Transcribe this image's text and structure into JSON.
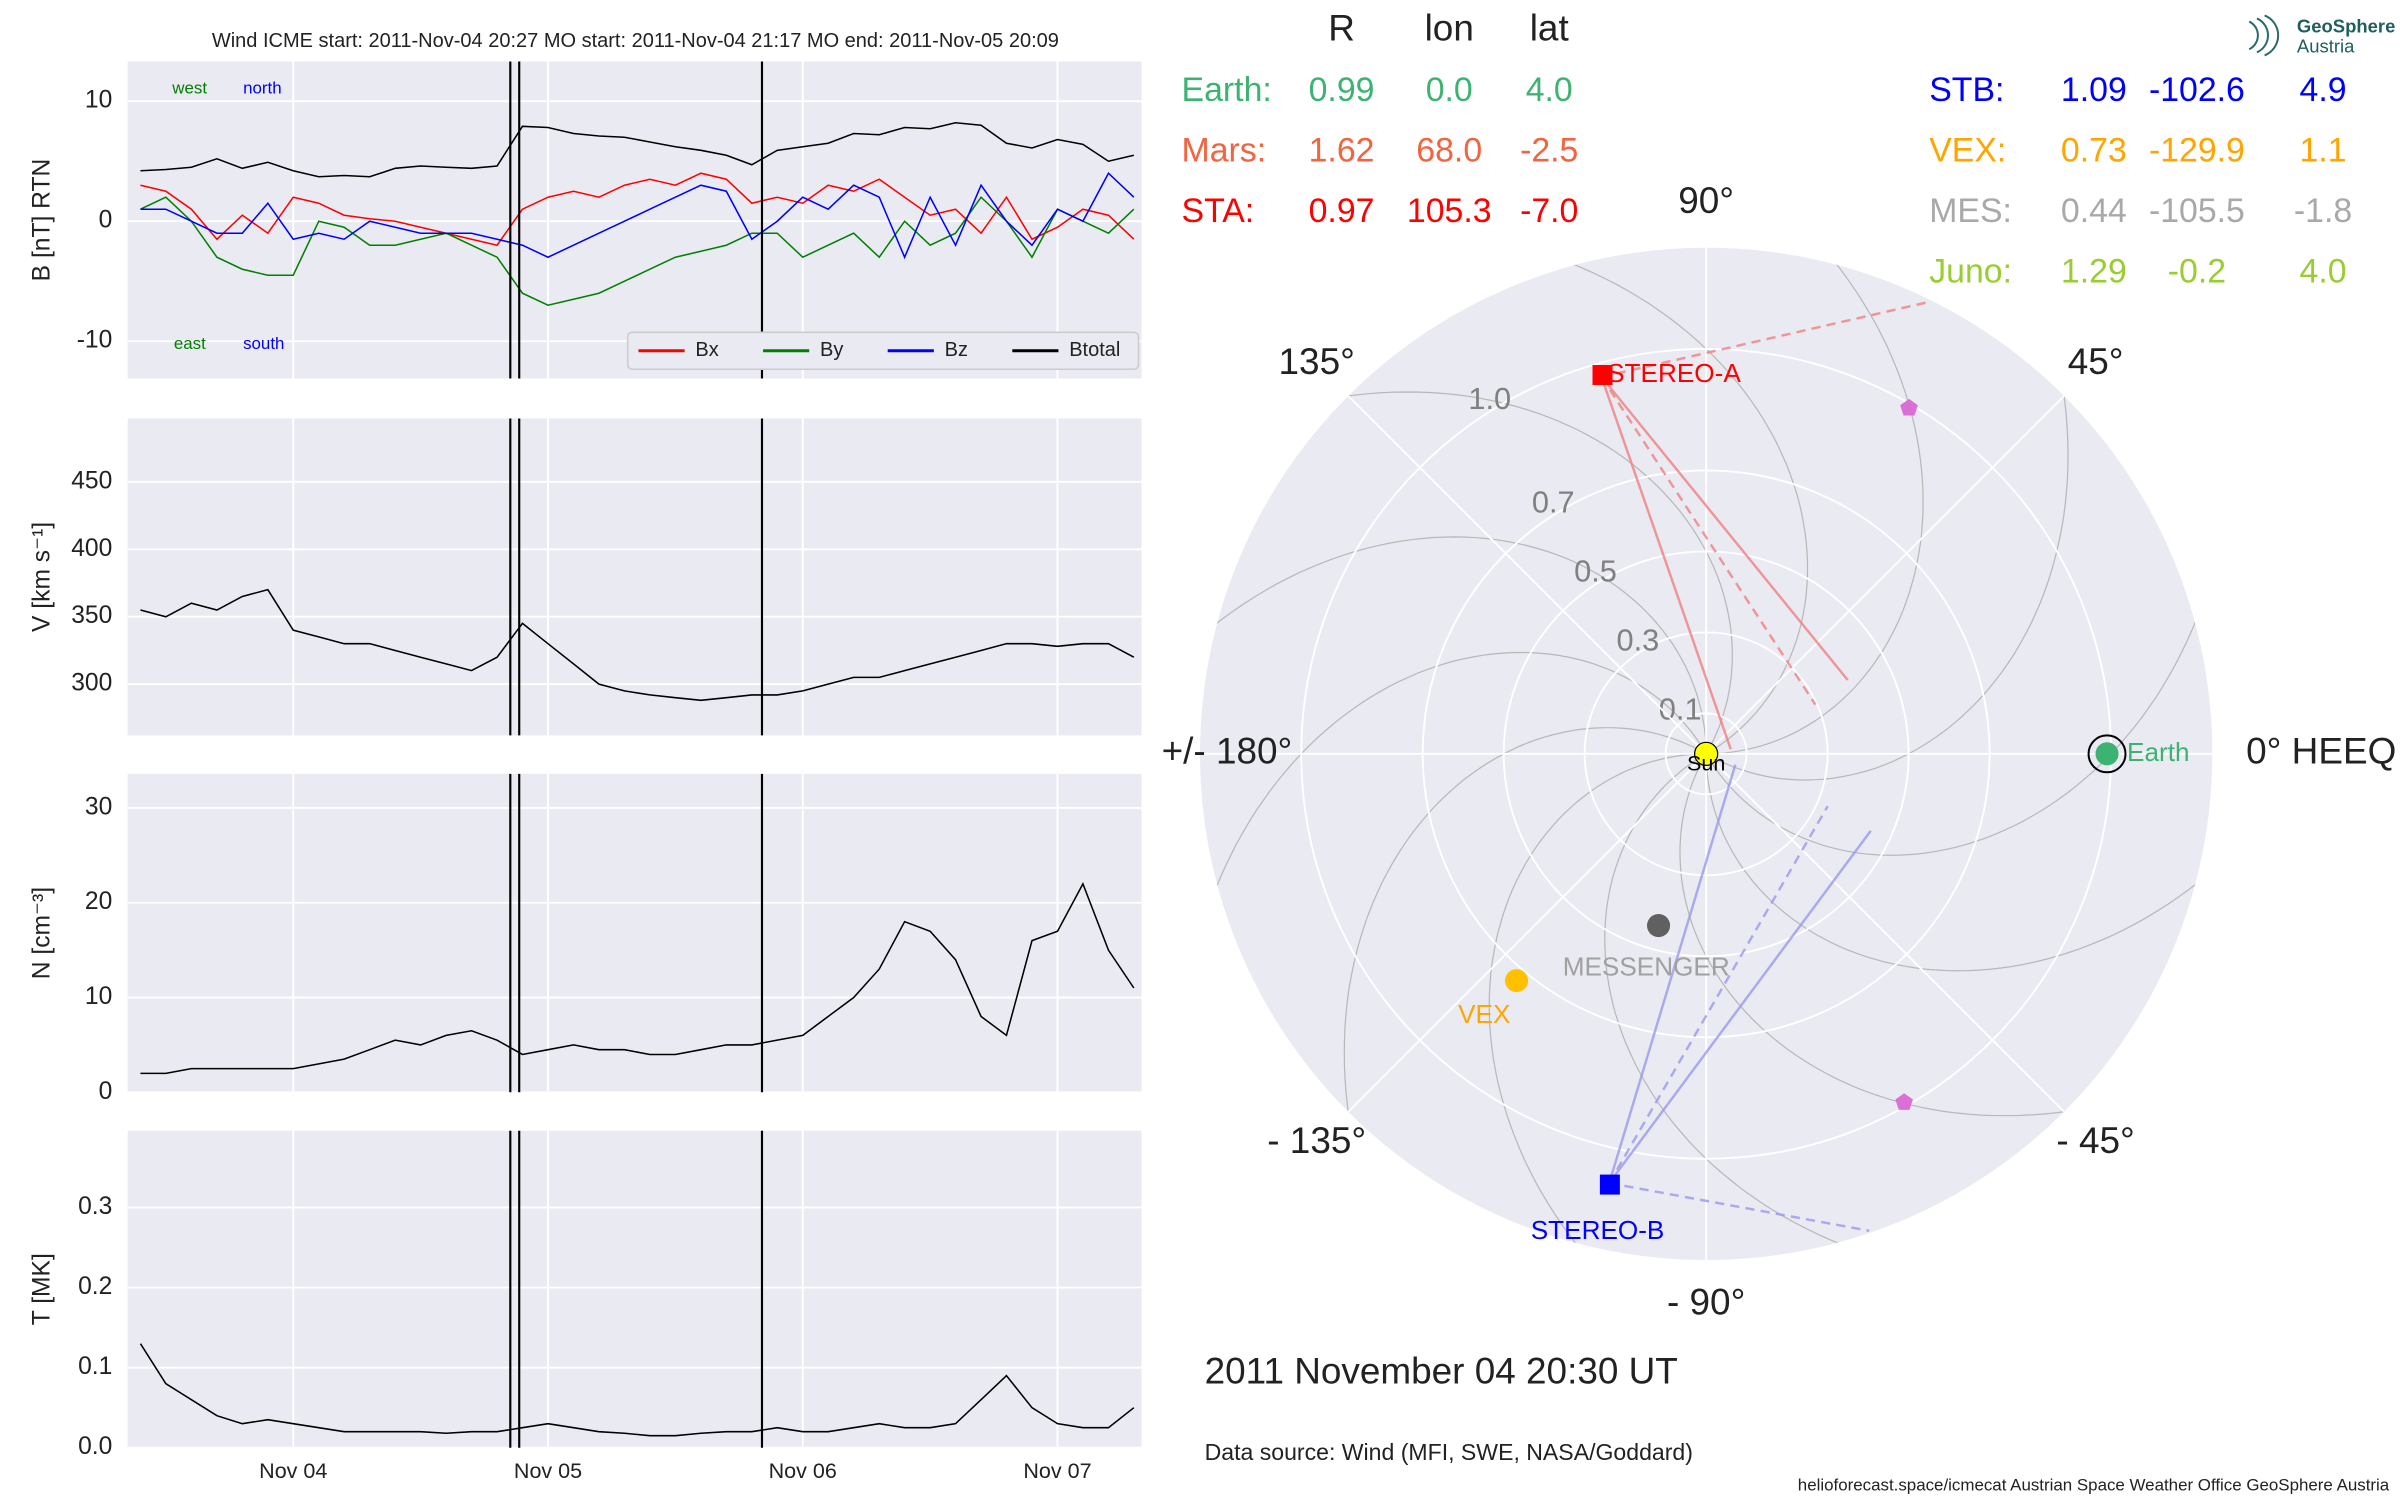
{
  "chart_data": [
    {
      "type": "line",
      "title": "Wind    ICME start: 2011-Nov-04 20:27   MO start: 2011-Nov-04 21:17   MO end: 2011-Nov-05 20:09",
      "ylabel": "B [nT] RTN",
      "x": [
        3.4,
        3.5,
        3.6,
        3.7,
        3.8,
        3.9,
        4.0,
        4.1,
        4.2,
        4.3,
        4.4,
        4.5,
        4.6,
        4.7,
        4.8,
        4.9,
        5.0,
        5.1,
        5.2,
        5.3,
        5.4,
        5.5,
        5.6,
        5.7,
        5.8,
        5.9,
        6.0,
        6.1,
        6.2,
        6.3,
        6.4,
        6.5,
        6.6,
        6.7,
        6.8,
        6.9,
        7.0,
        7.1,
        7.2,
        7.3
      ],
      "series": [
        {
          "name": "Bx",
          "color": "#ff0000",
          "values": [
            3.0,
            2.5,
            1.0,
            -1.5,
            0.5,
            -1.0,
            2.0,
            1.5,
            0.5,
            0.2,
            0.0,
            -0.5,
            -1.0,
            -1.5,
            -2.0,
            1.0,
            2.0,
            2.5,
            2.0,
            3.0,
            3.5,
            3.0,
            4.0,
            3.5,
            1.5,
            2.0,
            1.5,
            3.0,
            2.5,
            3.5,
            2.0,
            0.5,
            1.0,
            -1.0,
            2.0,
            -1.5,
            -0.5,
            1.0,
            0.5,
            -1.5
          ]
        },
        {
          "name": "By",
          "color": "#008000",
          "values": [
            1,
            2,
            0,
            -3,
            -4,
            -4.5,
            -4.5,
            0,
            -0.5,
            -2,
            -2,
            -1.5,
            -1,
            -2,
            -3,
            -6,
            -7,
            -6.5,
            -6,
            -5,
            -4,
            -3,
            -2.5,
            -2,
            -1,
            -1,
            -3,
            -2,
            -1,
            -3,
            0,
            -2,
            -1,
            2,
            0,
            -3,
            1,
            0,
            -1,
            1
          ]
        },
        {
          "name": "Bz",
          "color": "#0000ff",
          "values": [
            1,
            1,
            0,
            -1,
            -1,
            1.5,
            -1.5,
            -1,
            -1.5,
            0,
            -0.5,
            -1,
            -1,
            -1,
            -1.5,
            -2,
            -3,
            -2,
            -1,
            0,
            1,
            2,
            3,
            2.5,
            -1.5,
            0,
            2,
            1,
            3,
            2,
            -3,
            2,
            -2,
            3,
            0,
            -2,
            1,
            0,
            4,
            2
          ]
        },
        {
          "name": "Btotal",
          "color": "#000000",
          "values": [
            4.2,
            4.3,
            4.5,
            5.2,
            4.4,
            4.9,
            4.2,
            3.7,
            3.8,
            3.7,
            4.4,
            4.6,
            4.5,
            4.4,
            4.6,
            7.9,
            7.8,
            7.3,
            7.1,
            7.0,
            6.6,
            6.2,
            5.9,
            5.5,
            4.7,
            5.9,
            6.2,
            6.5,
            7.3,
            7.2,
            7.8,
            7.7,
            8.2,
            8.0,
            6.5,
            6.1,
            6.8,
            6.4,
            5.0,
            5.5
          ]
        }
      ],
      "ylim": [
        -13.1,
        13.3
      ],
      "yticks": [
        -10,
        0,
        10
      ],
      "grid": true,
      "legend": "lower right",
      "annotations": [
        {
          "text": "west",
          "color": "#008000"
        },
        {
          "text": "north",
          "color": "#0000ff"
        },
        {
          "text": "east",
          "color": "#008000"
        },
        {
          "text": "south",
          "color": "#0000ff"
        }
      ],
      "vlines": [
        4.852,
        4.887,
        5.84
      ]
    },
    {
      "type": "line",
      "ylabel": "V [km s⁻¹]",
      "x": [
        3.4,
        3.5,
        3.6,
        3.7,
        3.8,
        3.9,
        4.0,
        4.1,
        4.2,
        4.3,
        4.4,
        4.5,
        4.6,
        4.7,
        4.8,
        4.9,
        5.0,
        5.1,
        5.2,
        5.3,
        5.4,
        5.5,
        5.6,
        5.7,
        5.8,
        5.9,
        6.0,
        6.1,
        6.2,
        6.3,
        6.4,
        6.5,
        6.6,
        6.7,
        6.8,
        6.9,
        7.0,
        7.1,
        7.2,
        7.3
      ],
      "values": [
        355,
        350,
        360,
        355,
        365,
        370,
        340,
        335,
        330,
        330,
        325,
        320,
        315,
        310,
        320,
        345,
        330,
        315,
        300,
        295,
        292,
        290,
        288,
        290,
        292,
        292,
        295,
        300,
        305,
        305,
        310,
        315,
        320,
        325,
        330,
        330,
        328,
        330,
        330,
        320
      ],
      "color": "#000000",
      "ylim": [
        262,
        497
      ],
      "yticks": [
        300,
        350,
        400,
        450
      ],
      "grid": true
    },
    {
      "type": "line",
      "ylabel": "N [cm⁻³]",
      "x": [
        3.4,
        3.5,
        3.6,
        3.7,
        3.8,
        3.9,
        4.0,
        4.1,
        4.2,
        4.3,
        4.4,
        4.5,
        4.6,
        4.7,
        4.8,
        4.9,
        5.0,
        5.1,
        5.2,
        5.3,
        5.4,
        5.5,
        5.6,
        5.7,
        5.8,
        5.9,
        6.0,
        6.1,
        6.2,
        6.3,
        6.4,
        6.5,
        6.6,
        6.7,
        6.8,
        6.9,
        7.0,
        7.1,
        7.2,
        7.3
      ],
      "values": [
        2,
        2,
        2.5,
        2.5,
        2.5,
        2.5,
        2.5,
        3,
        3.5,
        4.5,
        5.5,
        5,
        6,
        6.5,
        5.5,
        4,
        4.5,
        5,
        4.5,
        4.5,
        4,
        4,
        4.5,
        5,
        5,
        5.5,
        6,
        8,
        10,
        13,
        18,
        17,
        14,
        8,
        6,
        16,
        17,
        22,
        15,
        11
      ],
      "color": "#000000",
      "ylim": [
        0,
        33.6
      ],
      "yticks": [
        0,
        10,
        20,
        30
      ],
      "grid": true
    },
    {
      "type": "line",
      "ylabel": "T [MK]",
      "x": [
        3.4,
        3.5,
        3.6,
        3.7,
        3.8,
        3.9,
        4.0,
        4.1,
        4.2,
        4.3,
        4.4,
        4.5,
        4.6,
        4.7,
        4.8,
        4.9,
        5.0,
        5.1,
        5.2,
        5.3,
        5.4,
        5.5,
        5.6,
        5.7,
        5.8,
        5.9,
        6.0,
        6.1,
        6.2,
        6.3,
        6.4,
        6.5,
        6.6,
        6.7,
        6.8,
        6.9,
        7.0,
        7.1,
        7.2,
        7.3
      ],
      "values": [
        0.13,
        0.08,
        0.06,
        0.04,
        0.03,
        0.035,
        0.03,
        0.025,
        0.02,
        0.02,
        0.02,
        0.02,
        0.018,
        0.02,
        0.02,
        0.025,
        0.03,
        0.025,
        0.02,
        0.018,
        0.015,
        0.015,
        0.018,
        0.02,
        0.02,
        0.025,
        0.02,
        0.02,
        0.025,
        0.03,
        0.025,
        0.025,
        0.03,
        0.06,
        0.09,
        0.05,
        0.03,
        0.025,
        0.025,
        0.05
      ],
      "color": "#000000",
      "ylim": [
        0,
        0.396
      ],
      "yticks": [
        {
          "value": 0,
          "label": "0.0"
        },
        0.1,
        0.2,
        0.3
      ],
      "grid": true,
      "xlim": [
        3.35,
        7.33
      ],
      "xticks": [
        {
          "value": 4,
          "label": "Nov 04"
        },
        {
          "value": 5,
          "label": "Nov 05"
        },
        {
          "value": 6,
          "label": "Nov 06"
        },
        {
          "value": 7,
          "label": "Nov 07"
        }
      ]
    },
    {
      "type": "polar",
      "rlim": [
        0,
        1.25
      ],
      "rticks": [
        0.1,
        0.3,
        0.5,
        0.7,
        {
          "value": 1,
          "label": "1.0"
        }
      ],
      "thetaticks": [
        {
          "value": 0,
          "label": "0° HEEQ"
        },
        {
          "value": 45,
          "label": "45°"
        },
        {
          "value": 90,
          "label": "90°"
        },
        {
          "value": 135,
          "label": "135°"
        },
        {
          "value": 180,
          "label": "+/- 180°"
        },
        {
          "value": -135,
          "label": "- 135°"
        },
        {
          "value": -90,
          "label": "- 90°"
        },
        {
          "value": -45,
          "label": "- 45°"
        }
      ],
      "objects": [
        {
          "name": "Sun",
          "color": "#ffff00",
          "edgecolor": "#000000",
          "marker": "circle",
          "r": 0,
          "lon": 0
        },
        {
          "name": "Earth",
          "color": "#3cb371",
          "edgecolor": "#000000",
          "marker": "circle",
          "r": 0.99,
          "lon": 0
        },
        {
          "name": "STEREO-A",
          "color": "#ff0000",
          "marker": "square",
          "r": 0.97,
          "lon": 105.3
        },
        {
          "name": "STEREO-B",
          "color": "#0000ff",
          "marker": "square",
          "r": 1.09,
          "lon": -102.6
        },
        {
          "name": "VEX",
          "color": "#ffc000",
          "label_color": "#ffa500",
          "marker": "circle",
          "r": 0.73,
          "lon": -129.9
        },
        {
          "name": "MESSENGER",
          "color": "#606060",
          "label_color": "#a0a0a0",
          "marker": "circle",
          "r": 0.44,
          "lon": -105.5
        },
        {
          "color": "#da70d6",
          "marker": "pentagon",
          "r": 0.99,
          "lon": 59.6
        },
        {
          "color": "#da70d6",
          "marker": "pentagon",
          "r": 0.99,
          "lon": -60.4
        }
      ],
      "table": {
        "columns": [
          "R",
          "lon",
          "lat"
        ],
        "rows": [
          {
            "name": "Earth:",
            "color": "#3cb371",
            "values": [
              "0.99",
              "0.0",
              "4.0"
            ]
          },
          {
            "name": "Mars:",
            "color": "#f26440",
            "values": [
              "1.62",
              "68.0",
              "-2.5"
            ]
          },
          {
            "name": "STA:",
            "color": "#ff0000",
            "values": [
              "0.97",
              "105.3",
              "-7.0"
            ]
          },
          {
            "name": "STB:",
            "color": "#0000ff",
            "values": [
              "1.09",
              "-102.6",
              "4.9"
            ]
          },
          {
            "name": "VEX:",
            "color": "#ffa500",
            "values": [
              "0.73",
              "-129.9",
              "1.1"
            ]
          },
          {
            "name": "MES:",
            "color": "#a9a9a9",
            "values": [
              "0.44",
              "-105.5",
              "-1.8"
            ]
          },
          {
            "name": "Juno:",
            "color": "#9acd32",
            "values": [
              "1.29",
              "-0.2",
              "4.0"
            ]
          }
        ]
      },
      "date": "2011 November 04  20:30 UT",
      "source": "Data source: Wind (MFI, SWE, NASA/Goddard)"
    }
  ],
  "footer": "helioforecast.space/icmecat   Austrian Space Weather Office   GeoSphere Austria",
  "logo": {
    "name": "GeoSphere",
    "sub": "Austria"
  }
}
